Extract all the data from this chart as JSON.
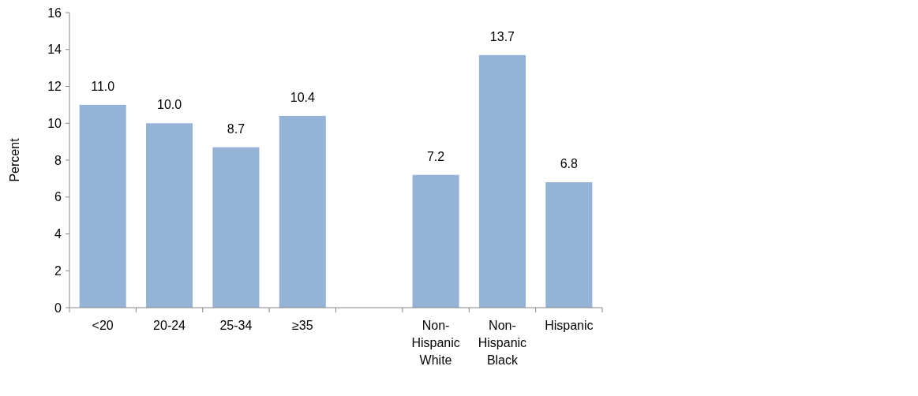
{
  "chart_data": {
    "type": "bar",
    "ylabel": "Percent",
    "categories": [
      "<20",
      "20-24",
      "25-34",
      "≥35",
      null,
      "Non-Hispanic White",
      "Non-Hispanic Black",
      "Hispanic"
    ],
    "values": [
      11.0,
      10.0,
      8.7,
      10.4,
      null,
      7.2,
      13.7,
      6.8
    ],
    "value_labels": [
      "11.0",
      "10.0",
      "8.7",
      "10.4",
      null,
      "7.2",
      "13.7",
      "6.8"
    ],
    "color": "#95b3d7",
    "ylim": [
      0,
      16
    ],
    "yticks": [
      0,
      2,
      4,
      6,
      8,
      10,
      12,
      14,
      16
    ],
    "grid": false
  }
}
